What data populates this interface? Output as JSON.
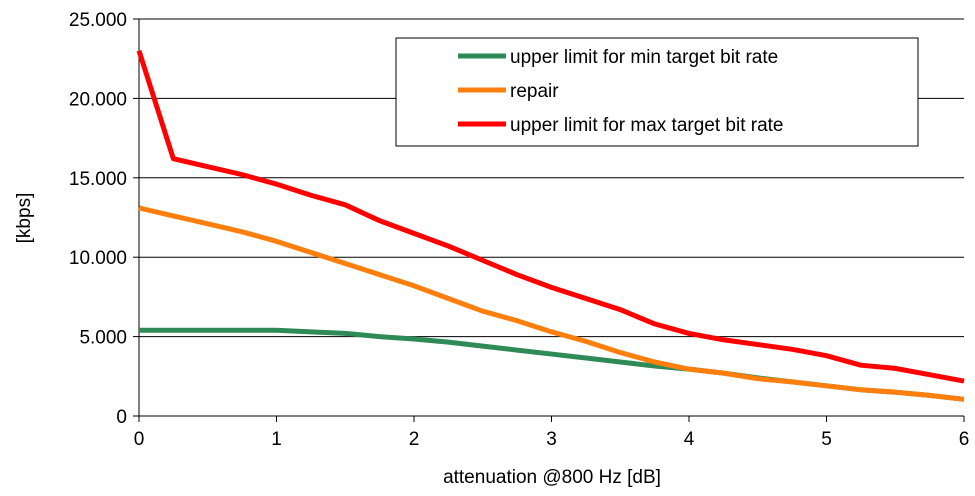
{
  "chart_data": {
    "type": "line",
    "title": "",
    "xlabel": "attenuation @800 Hz [dB]",
    "ylabel": "[kbps]",
    "xlim": [
      0,
      6
    ],
    "ylim": [
      0,
      25000
    ],
    "x_ticks": [
      0,
      1,
      2,
      3,
      4,
      5,
      6
    ],
    "x_tick_labels": [
      "0",
      "1",
      "2",
      "3",
      "4",
      "5",
      "6"
    ],
    "y_ticks": [
      0,
      5000,
      10000,
      15000,
      20000,
      25000
    ],
    "y_tick_labels": [
      "0",
      "5.000",
      "10.000",
      "15.000",
      "20.000",
      "25.000"
    ],
    "grid": "horizontal",
    "legend_position": "top-right",
    "x": [
      0,
      0.25,
      0.5,
      0.75,
      1,
      1.25,
      1.5,
      1.75,
      2,
      2.25,
      2.5,
      2.75,
      3,
      3.25,
      3.5,
      3.75,
      4,
      4.25,
      4.5,
      4.75,
      5,
      5.25,
      5.5,
      5.75,
      6
    ],
    "series": [
      {
        "name": "upper limit for min target bit rate",
        "color": "#2e8b57",
        "values": [
          5400,
          5400,
          5400,
          5400,
          5400,
          5300,
          5200,
          5000,
          4850,
          4650,
          4400,
          4150,
          3900,
          3650,
          3400,
          3150,
          2950,
          2700,
          2400,
          2150,
          1900,
          1650,
          1500,
          1300,
          1050
        ]
      },
      {
        "name": "repair",
        "color": "#ff7f0e",
        "values": [
          13100,
          12600,
          12100,
          11600,
          11000,
          10300,
          9600,
          8900,
          8200,
          7400,
          6600,
          6000,
          5300,
          4700,
          4000,
          3400,
          2950,
          2700,
          2350,
          2150,
          1900,
          1650,
          1500,
          1300,
          1050
        ]
      },
      {
        "name": "upper limit for max target bit rate",
        "color": "#ff0000",
        "values": [
          23000,
          16200,
          15700,
          15200,
          14600,
          13900,
          13300,
          12300,
          11500,
          10700,
          9800,
          8900,
          8100,
          7400,
          6700,
          5800,
          5200,
          4800,
          4500,
          4200,
          3800,
          3200,
          3000,
          2600,
          2200
        ]
      }
    ]
  }
}
